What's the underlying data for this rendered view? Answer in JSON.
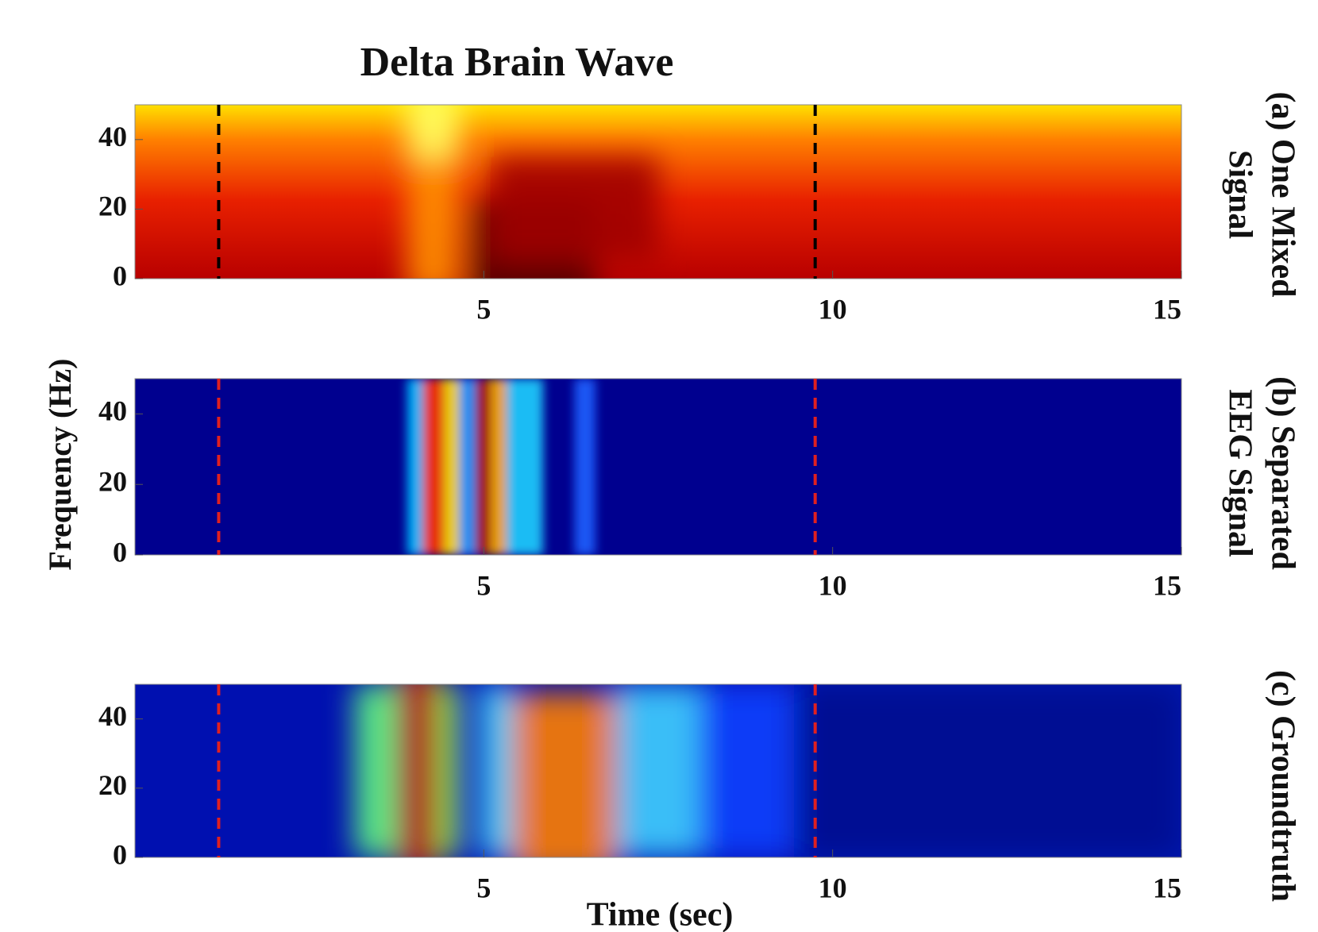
{
  "figure": {
    "title": "Delta Brain Wave",
    "ylabel": "Frequency (Hz)",
    "xlabel": "Time (sec)"
  },
  "chart_data": [
    {
      "type": "spectrogram",
      "panel_label": [
        "(a) One Mixed",
        "Signal"
      ],
      "xlim": [
        0,
        15
      ],
      "ylim": [
        0,
        50
      ],
      "xticks": [
        5,
        10,
        15
      ],
      "yticks": [
        0,
        20,
        40
      ],
      "markers": [
        1.2,
        9.75
      ],
      "marker_color": "#000000"
    },
    {
      "type": "spectrogram",
      "panel_label": [
        "(b) Separated",
        "EEG Signal"
      ],
      "xlim": [
        0,
        15
      ],
      "ylim": [
        0,
        50
      ],
      "xticks": [
        5,
        10,
        15
      ],
      "yticks": [
        0,
        20,
        40
      ],
      "markers": [
        1.2,
        9.75
      ],
      "marker_color": "#e02020"
    },
    {
      "type": "spectrogram",
      "panel_label": [
        "(c) Groundtruth"
      ],
      "xlim": [
        0,
        15
      ],
      "ylim": [
        0,
        50
      ],
      "xticks": [
        5,
        10,
        15
      ],
      "yticks": [
        0,
        20,
        40
      ],
      "markers": [
        1.2,
        9.75
      ],
      "marker_color": "#e02020"
    }
  ]
}
